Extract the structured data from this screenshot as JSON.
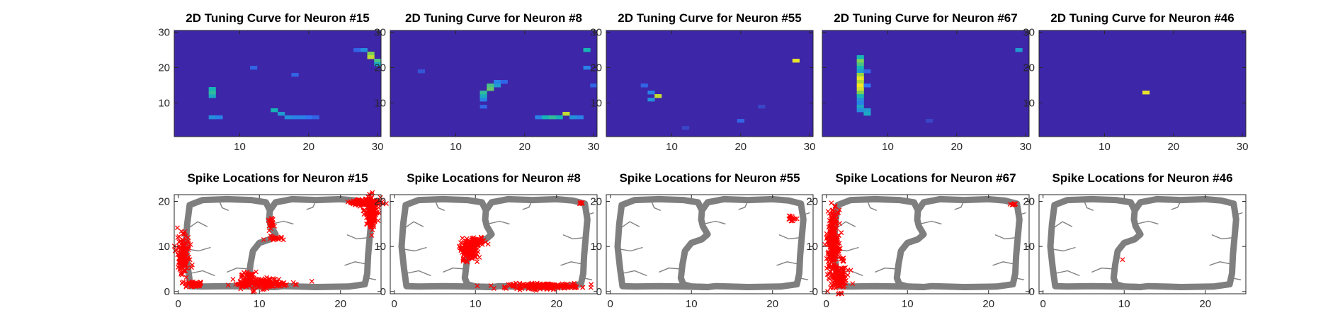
{
  "figure": {
    "background": "#ffffff",
    "colormap": [
      "#3e26a8",
      "#2e75f5",
      "#16b5b5",
      "#9bd53c",
      "#fae625"
    ],
    "axes_color": "#262626",
    "track_color": "#7f7f7f",
    "spike_color": "#ff0000",
    "track_loops": [
      [
        [
          1.5,
          1.2
        ],
        [
          1.2,
          5
        ],
        [
          0.9,
          10
        ],
        [
          1.1,
          15
        ],
        [
          1.4,
          19.2
        ],
        [
          3,
          20.3
        ],
        [
          6,
          20.5
        ],
        [
          9,
          20.3
        ],
        [
          10.8,
          19.8
        ],
        [
          11.3,
          18
        ],
        [
          11.2,
          16
        ],
        [
          11.4,
          14.5
        ],
        [
          12,
          12.7
        ],
        [
          11.3,
          11.6
        ],
        [
          10,
          10.8
        ],
        [
          9.2,
          9
        ],
        [
          8.9,
          6
        ],
        [
          8.7,
          3
        ],
        [
          9,
          1.6
        ],
        [
          10,
          1.1
        ],
        [
          12,
          1
        ],
        [
          9,
          1.1
        ],
        [
          6,
          1.2
        ],
        [
          3,
          1.1
        ],
        [
          1.5,
          1.2
        ]
      ],
      [
        [
          11.3,
          18
        ],
        [
          12,
          19.8
        ],
        [
          14,
          20.5
        ],
        [
          17,
          20.3
        ],
        [
          20,
          20.5
        ],
        [
          22,
          20.2
        ],
        [
          23.5,
          19.5
        ],
        [
          23.8,
          16
        ],
        [
          23.6,
          12
        ],
        [
          23.4,
          8
        ],
        [
          23.3,
          4
        ],
        [
          23,
          1.6
        ],
        [
          21,
          1.1
        ],
        [
          17,
          1
        ],
        [
          13,
          1.2
        ],
        [
          12,
          1
        ],
        [
          10,
          1.1
        ]
      ]
    ],
    "track_branches": [
      [
        [
          1.2,
          14
        ],
        [
          2.4,
          15.5
        ],
        [
          3.6,
          14.4
        ]
      ],
      [
        [
          0.9,
          9.5
        ],
        [
          2.5,
          9
        ],
        [
          4,
          9.8
        ]
      ],
      [
        [
          1.4,
          4
        ],
        [
          3,
          4.6
        ],
        [
          4.5,
          3.5
        ]
      ],
      [
        [
          5,
          20.4
        ],
        [
          5.4,
          18.6
        ],
        [
          6.2,
          18
        ]
      ],
      [
        [
          17,
          20.3
        ],
        [
          16.6,
          18.7
        ],
        [
          15.8,
          18.2
        ]
      ],
      [
        [
          23.6,
          12
        ],
        [
          22,
          11.7
        ],
        [
          20.8,
          12.6
        ]
      ],
      [
        [
          23.4,
          6
        ],
        [
          21.8,
          6.6
        ],
        [
          20.5,
          5.8
        ]
      ],
      [
        [
          8.8,
          5
        ],
        [
          7.2,
          5.2
        ],
        [
          6,
          4.3
        ]
      ],
      [
        [
          11.5,
          15
        ],
        [
          13,
          15.6
        ],
        [
          14.2,
          15
        ]
      ],
      [
        [
          23.8,
          17
        ],
        [
          24.6,
          17.5
        ]
      ],
      [
        [
          23.3,
          3
        ],
        [
          24.4,
          2.6
        ]
      ]
    ]
  },
  "panels": [
    {
      "tuning": {
        "title": "2D Tuning Curve for Neuron #15",
        "show_y_ticks": true,
        "spots": [
          {
            "x": 6,
            "y": 12,
            "v": 0.45
          },
          {
            "x": 6,
            "y": 13,
            "v": 0.55
          },
          {
            "x": 6,
            "y": 14,
            "v": 0.5
          },
          {
            "x": 6,
            "y": 6,
            "v": 0.35
          },
          {
            "x": 7,
            "y": 6,
            "v": 0.3
          },
          {
            "x": 15,
            "y": 8,
            "v": 0.5
          },
          {
            "x": 16,
            "y": 7,
            "v": 0.4
          },
          {
            "x": 17,
            "y": 6,
            "v": 0.35
          },
          {
            "x": 18,
            "y": 6,
            "v": 0.3
          },
          {
            "x": 19,
            "y": 6,
            "v": 0.3
          },
          {
            "x": 20,
            "y": 6,
            "v": 0.25
          },
          {
            "x": 21,
            "y": 6,
            "v": 0.2
          },
          {
            "x": 12,
            "y": 20,
            "v": 0.2
          },
          {
            "x": 18,
            "y": 18,
            "v": 0.2
          },
          {
            "x": 29,
            "y": 24,
            "v": 0.7
          },
          {
            "x": 29,
            "y": 23,
            "v": 0.85
          },
          {
            "x": 30,
            "y": 22,
            "v": 0.6
          },
          {
            "x": 30,
            "y": 21,
            "v": 0.45
          },
          {
            "x": 28,
            "y": 25,
            "v": 0.35
          },
          {
            "x": 27,
            "y": 25,
            "v": 0.2
          }
        ]
      },
      "spikes": {
        "title": "Spike Locations for Neuron #15",
        "show_y_ticks": true,
        "clusters": [
          {
            "x": 0.6,
            "y": 8,
            "sx": 0.4,
            "sy": 2.0,
            "n": 140
          },
          {
            "x": 1.8,
            "y": 1.6,
            "sx": 0.6,
            "sy": 0.3,
            "n": 50
          },
          {
            "x": 10.5,
            "y": 1.8,
            "sx": 1.8,
            "sy": 0.5,
            "n": 170
          },
          {
            "x": 8.6,
            "y": 3.2,
            "sx": 0.4,
            "sy": 0.6,
            "n": 30
          },
          {
            "x": 9.2,
            "y": 0.2,
            "sx": 0.2,
            "sy": 0.2,
            "n": 4
          },
          {
            "x": 11.5,
            "y": 15.5,
            "sx": 0.2,
            "sy": 0.6,
            "n": 22
          },
          {
            "x": 12,
            "y": 11.8,
            "sx": 0.6,
            "sy": 0.3,
            "n": 22
          },
          {
            "x": 23,
            "y": 19.8,
            "sx": 1.0,
            "sy": 0.4,
            "n": 100
          },
          {
            "x": 23.8,
            "y": 17.2,
            "sx": 0.4,
            "sy": 1.8,
            "n": 140
          }
        ]
      }
    },
    {
      "tuning": {
        "title": "2D Tuning Curve for Neuron #8",
        "show_y_ticks": true,
        "spots": [
          {
            "x": 14,
            "y": 11,
            "v": 0.3
          },
          {
            "x": 14,
            "y": 12,
            "v": 0.45
          },
          {
            "x": 14,
            "y": 13,
            "v": 0.55
          },
          {
            "x": 15,
            "y": 14,
            "v": 0.65
          },
          {
            "x": 15,
            "y": 15,
            "v": 0.6
          },
          {
            "x": 16,
            "y": 15,
            "v": 0.4
          },
          {
            "x": 16,
            "y": 16,
            "v": 0.3
          },
          {
            "x": 17,
            "y": 16,
            "v": 0.2
          },
          {
            "x": 14,
            "y": 9,
            "v": 0.2
          },
          {
            "x": 22,
            "y": 6,
            "v": 0.3
          },
          {
            "x": 23,
            "y": 6,
            "v": 0.5
          },
          {
            "x": 24,
            "y": 6,
            "v": 0.55
          },
          {
            "x": 25,
            "y": 6,
            "v": 0.5
          },
          {
            "x": 26,
            "y": 7,
            "v": 0.85
          },
          {
            "x": 27,
            "y": 6,
            "v": 0.35
          },
          {
            "x": 28,
            "y": 6,
            "v": 0.3
          },
          {
            "x": 29,
            "y": 25,
            "v": 0.5
          },
          {
            "x": 29,
            "y": 20,
            "v": 0.3
          },
          {
            "x": 5,
            "y": 19,
            "v": 0.15
          },
          {
            "x": 30,
            "y": 15,
            "v": 0.2
          }
        ]
      },
      "spikes": {
        "title": "Spike Locations for Neuron #8",
        "show_y_ticks": true,
        "clusters": [
          {
            "x": 9.2,
            "y": 9.2,
            "sx": 0.5,
            "sy": 1.2,
            "n": 150
          },
          {
            "x": 10.2,
            "y": 11,
            "sx": 0.6,
            "sy": 0.5,
            "n": 60
          },
          {
            "x": 18.5,
            "y": 1.2,
            "sx": 2.2,
            "sy": 0.3,
            "n": 200
          },
          {
            "x": 23,
            "y": 19.5,
            "sx": 0.15,
            "sy": 0.15,
            "n": 6
          }
        ]
      }
    },
    {
      "tuning": {
        "title": "2D Tuning Curve for Neuron #55",
        "show_y_ticks": true,
        "spots": [
          {
            "x": 8,
            "y": 12,
            "v": 0.85
          },
          {
            "x": 7,
            "y": 11,
            "v": 0.35
          },
          {
            "x": 7,
            "y": 13,
            "v": 0.3
          },
          {
            "x": 6,
            "y": 15,
            "v": 0.2
          },
          {
            "x": 28,
            "y": 22,
            "v": 0.95
          },
          {
            "x": 20,
            "y": 5,
            "v": 0.2
          },
          {
            "x": 12,
            "y": 3,
            "v": 0.1
          },
          {
            "x": 23,
            "y": 9,
            "v": 0.1
          }
        ]
      },
      "spikes": {
        "title": "Spike Locations for Neuron #55",
        "show_y_ticks": true,
        "clusters": [
          {
            "x": 22.4,
            "y": 16.2,
            "sx": 0.2,
            "sy": 0.3,
            "n": 16
          }
        ]
      }
    },
    {
      "tuning": {
        "title": "2D Tuning Curve for Neuron #67",
        "show_y_ticks": false,
        "spots": [
          {
            "x": 6,
            "y": 21,
            "v": 0.6
          },
          {
            "x": 6,
            "y": 22,
            "v": 0.7
          },
          {
            "x": 6,
            "y": 23,
            "v": 0.5
          },
          {
            "x": 6,
            "y": 20,
            "v": 0.5
          },
          {
            "x": 6,
            "y": 19,
            "v": 0.4
          },
          {
            "x": 6,
            "y": 18,
            "v": 0.75
          },
          {
            "x": 6,
            "y": 17,
            "v": 0.95
          },
          {
            "x": 6,
            "y": 16,
            "v": 0.8
          },
          {
            "x": 6,
            "y": 15,
            "v": 1.0
          },
          {
            "x": 6,
            "y": 14,
            "v": 0.9
          },
          {
            "x": 6,
            "y": 13,
            "v": 0.7
          },
          {
            "x": 6,
            "y": 12,
            "v": 0.5
          },
          {
            "x": 6,
            "y": 11,
            "v": 0.35
          },
          {
            "x": 6,
            "y": 10,
            "v": 0.3
          },
          {
            "x": 6,
            "y": 9,
            "v": 0.45
          },
          {
            "x": 6,
            "y": 8,
            "v": 0.35
          },
          {
            "x": 7,
            "y": 8,
            "v": 0.4
          },
          {
            "x": 7,
            "y": 7,
            "v": 0.45
          },
          {
            "x": 7,
            "y": 19,
            "v": 0.2
          },
          {
            "x": 7,
            "y": 15,
            "v": 0.25
          },
          {
            "x": 29,
            "y": 25,
            "v": 0.4
          },
          {
            "x": 16,
            "y": 5,
            "v": 0.1
          }
        ]
      },
      "spikes": {
        "title": "Spike Locations for Neuron #67",
        "show_y_ticks": true,
        "clusters": [
          {
            "x": 0.8,
            "y": 11,
            "sx": 0.35,
            "sy": 3.4,
            "n": 280
          },
          {
            "x": 1.6,
            "y": 2.8,
            "sx": 0.6,
            "sy": 1.4,
            "n": 100
          },
          {
            "x": 2,
            "y": 7,
            "sx": 0.15,
            "sy": 0.2,
            "n": 6
          },
          {
            "x": 23,
            "y": 19.3,
            "sx": 0.15,
            "sy": 0.2,
            "n": 8
          }
        ]
      }
    },
    {
      "tuning": {
        "title": "2D Tuning Curve for Neuron #46",
        "show_y_ticks": true,
        "spots": [
          {
            "x": 16,
            "y": 13,
            "v": 0.95
          }
        ]
      },
      "spikes": {
        "title": "Spike Locations for Neuron #46",
        "show_y_ticks": true,
        "clusters": [
          {
            "x": 9.8,
            "y": 7,
            "sx": 0.05,
            "sy": 0.05,
            "n": 1
          }
        ]
      }
    }
  ],
  "chart_data": [
    {
      "type": "heatmap",
      "title": "2D Tuning Curve for Neuron #15",
      "xlim": [
        0.5,
        30.5
      ],
      "ylim": [
        0.5,
        30.5
      ],
      "xticks": [
        10,
        20,
        30
      ],
      "yticks": [
        10,
        20,
        30
      ],
      "peak_bins": [
        [
          29,
          23
        ],
        [
          6,
          13
        ],
        [
          15,
          8
        ]
      ]
    },
    {
      "type": "heatmap",
      "title": "2D Tuning Curve for Neuron #8",
      "xlim": [
        0.5,
        30.5
      ],
      "ylim": [
        0.5,
        30.5
      ],
      "xticks": [
        10,
        20,
        30
      ],
      "yticks": [
        10,
        20,
        30
      ],
      "peak_bins": [
        [
          26,
          7
        ],
        [
          15,
          14
        ],
        [
          24,
          6
        ]
      ]
    },
    {
      "type": "heatmap",
      "title": "2D Tuning Curve for Neuron #55",
      "xlim": [
        0.5,
        30.5
      ],
      "ylim": [
        0.5,
        30.5
      ],
      "xticks": [
        10,
        20,
        30
      ],
      "yticks": [
        10,
        20,
        30
      ],
      "peak_bins": [
        [
          28,
          22
        ],
        [
          8,
          12
        ]
      ]
    },
    {
      "type": "heatmap",
      "title": "2D Tuning Curve for Neuron #67",
      "xlim": [
        0.5,
        30.5
      ],
      "ylim": [
        0.5,
        30.5
      ],
      "xticks": [
        10,
        20,
        30
      ],
      "yticks": [
        10,
        20,
        30
      ],
      "peak_bins": [
        [
          6,
          15
        ],
        [
          6,
          17
        ],
        [
          6,
          14
        ]
      ]
    },
    {
      "type": "heatmap",
      "title": "2D Tuning Curve for Neuron #46",
      "xlim": [
        0.5,
        30.5
      ],
      "ylim": [
        0.5,
        30.5
      ],
      "xticks": [
        10,
        20,
        30
      ],
      "yticks": [
        10,
        20,
        30
      ],
      "peak_bins": [
        [
          16,
          13
        ]
      ]
    },
    {
      "type": "scatter",
      "title": "Spike Locations for Neuron #15",
      "xlim": [
        -0.5,
        25
      ],
      "ylim": [
        -0.5,
        21.5
      ],
      "xticks": [
        0,
        10,
        20
      ],
      "yticks": [
        0,
        10,
        20
      ]
    },
    {
      "type": "scatter",
      "title": "Spike Locations for Neuron #8",
      "xlim": [
        -0.5,
        25
      ],
      "ylim": [
        -0.5,
        21.5
      ],
      "xticks": [
        0,
        10,
        20
      ],
      "yticks": [
        0,
        10,
        20
      ]
    },
    {
      "type": "scatter",
      "title": "Spike Locations for Neuron #55",
      "xlim": [
        -0.5,
        25
      ],
      "ylim": [
        -0.5,
        21.5
      ],
      "xticks": [
        0,
        10,
        20
      ],
      "yticks": [
        0,
        10,
        20
      ]
    },
    {
      "type": "scatter",
      "title": "Spike Locations for Neuron #67",
      "xlim": [
        -0.5,
        25
      ],
      "ylim": [
        -0.5,
        21.5
      ],
      "xticks": [
        0,
        10,
        20
      ],
      "yticks": [
        0,
        10,
        20
      ]
    },
    {
      "type": "scatter",
      "title": "Spike Locations for Neuron #46",
      "xlim": [
        -0.5,
        25
      ],
      "ylim": [
        -0.5,
        21.5
      ],
      "xticks": [
        0,
        10,
        20
      ],
      "yticks": [
        0,
        10,
        20
      ]
    }
  ]
}
